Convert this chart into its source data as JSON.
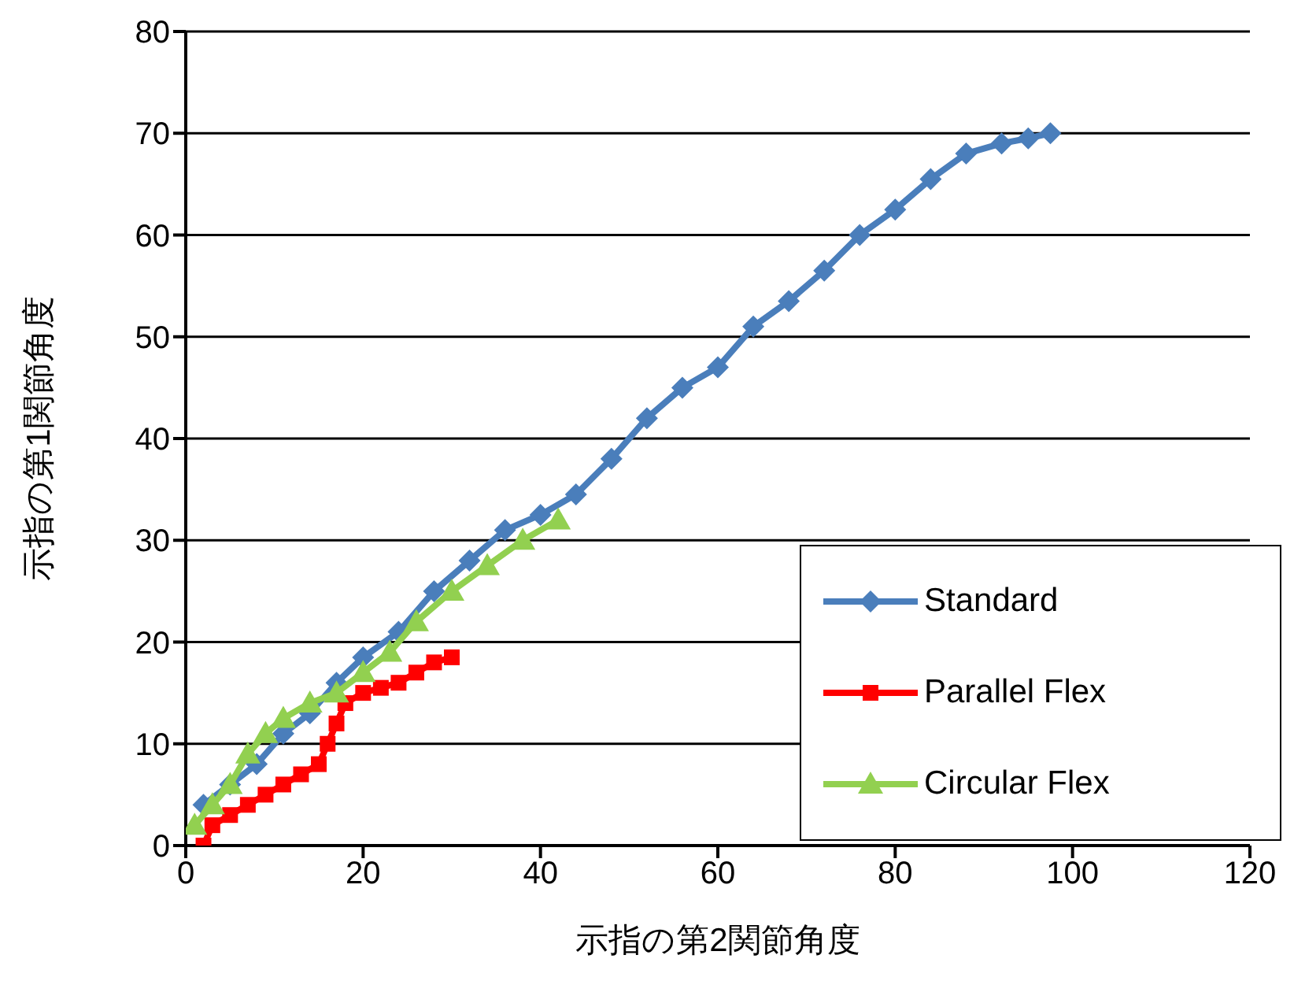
{
  "chart_data": {
    "type": "line",
    "xlabel": "示指の第2関節角度",
    "ylabel": "示指の第1関節角度",
    "xlim": [
      0,
      120
    ],
    "xticks": [
      0,
      20,
      40,
      60,
      80,
      100,
      120
    ],
    "ylim": [
      0,
      80
    ],
    "yticks": [
      0,
      10,
      20,
      30,
      40,
      50,
      60,
      70,
      80
    ],
    "grid": "y",
    "legend": "bottom right",
    "line_style": "solid",
    "series": [
      {
        "name": "Standard",
        "color": "#4a7ebb",
        "marker": "diamond",
        "x": [
          2,
          5,
          8,
          11,
          14,
          17,
          20,
          24,
          28,
          32,
          36,
          40,
          44,
          48,
          52,
          56,
          60,
          64,
          68,
          72,
          76,
          80,
          84,
          88,
          92,
          95,
          97.5
        ],
        "values": [
          4,
          6,
          8,
          11,
          13,
          16,
          18.5,
          21,
          25,
          28,
          31,
          32.5,
          34.5,
          38,
          42,
          45,
          47,
          51,
          53.5,
          56.5,
          60,
          62.5,
          65.5,
          68,
          69,
          69.5,
          70
        ]
      },
      {
        "name": "Parallel Flex",
        "color": "#ff0000",
        "marker": "square",
        "x": [
          2,
          3,
          5,
          7,
          9,
          11,
          13,
          15,
          16,
          17,
          18,
          20,
          22,
          24,
          26,
          28,
          30
        ],
        "values": [
          0,
          2,
          3,
          4,
          5,
          6,
          7,
          8,
          10,
          12,
          14,
          15,
          15.5,
          16,
          17,
          18,
          18.5
        ]
      },
      {
        "name": "Circular Flex",
        "color": "#92d050",
        "marker": "triangle",
        "x": [
          1,
          3,
          5,
          7,
          9,
          11,
          14,
          17,
          20,
          23,
          26,
          30,
          34,
          38,
          42
        ],
        "values": [
          2,
          4,
          6,
          9,
          11,
          12.5,
          14,
          15,
          17,
          19,
          22,
          25,
          27.5,
          30,
          32
        ]
      }
    ]
  }
}
